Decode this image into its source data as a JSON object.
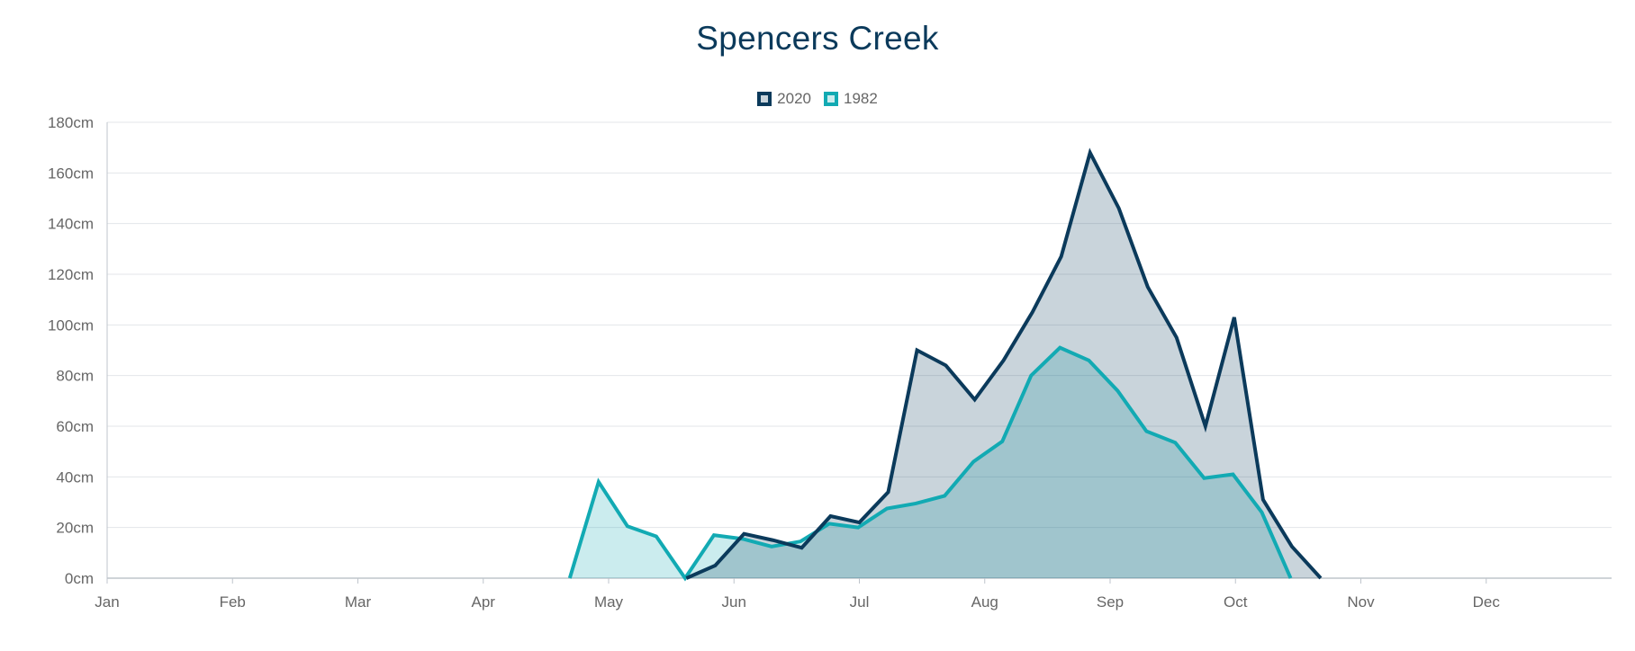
{
  "chart_data": {
    "type": "area",
    "title": "Spencers Creek",
    "xlabel": "",
    "ylabel": "",
    "x_unit": "month",
    "xlim": [
      0,
      12
    ],
    "ylim": [
      0,
      180
    ],
    "y_ticks": [
      0,
      20,
      40,
      60,
      80,
      100,
      120,
      140,
      160,
      180
    ],
    "y_tick_labels": [
      "0cm",
      "20cm",
      "40cm",
      "60cm",
      "80cm",
      "100cm",
      "120cm",
      "140cm",
      "160cm",
      "180cm"
    ],
    "x_tick_labels": [
      "Jan",
      "Feb",
      "Mar",
      "Apr",
      "May",
      "Jun",
      "Jul",
      "Aug",
      "Sep",
      "Oct",
      "Nov",
      "Dec"
    ],
    "grid": true,
    "legend_position": "top-center",
    "series": [
      {
        "name": "2020",
        "color": "#0b3a5b",
        "fill": "rgba(11,58,91,0.22)",
        "points": [
          [
            4.62,
            0
          ],
          [
            4.85,
            5
          ],
          [
            5.08,
            17.5
          ],
          [
            5.31,
            15
          ],
          [
            5.54,
            12
          ],
          [
            5.77,
            24.5
          ],
          [
            6.0,
            22
          ],
          [
            6.23,
            34
          ],
          [
            6.46,
            90
          ],
          [
            6.69,
            84
          ],
          [
            6.92,
            70.5
          ],
          [
            7.15,
            86
          ],
          [
            7.38,
            105
          ],
          [
            7.61,
            127
          ],
          [
            7.84,
            168
          ],
          [
            8.07,
            146
          ],
          [
            8.3,
            115
          ],
          [
            8.53,
            95
          ],
          [
            8.76,
            60
          ],
          [
            8.99,
            103
          ],
          [
            9.22,
            31
          ],
          [
            9.45,
            12.5
          ],
          [
            9.68,
            0
          ]
        ]
      },
      {
        "name": "1982",
        "color": "#12aab3",
        "fill": "rgba(18,170,179,0.22)",
        "points": [
          [
            3.69,
            0
          ],
          [
            3.92,
            38
          ],
          [
            4.15,
            20.5
          ],
          [
            4.38,
            16.5
          ],
          [
            4.61,
            0
          ],
          [
            4.84,
            17
          ],
          [
            5.07,
            15.5
          ],
          [
            5.3,
            12.5
          ],
          [
            5.53,
            14.5
          ],
          [
            5.76,
            21.5
          ],
          [
            5.99,
            20
          ],
          [
            6.22,
            27.5
          ],
          [
            6.45,
            29.5
          ],
          [
            6.68,
            32.5
          ],
          [
            6.91,
            46
          ],
          [
            7.14,
            54
          ],
          [
            7.37,
            80
          ],
          [
            7.6,
            91
          ],
          [
            7.83,
            86
          ],
          [
            8.06,
            74
          ],
          [
            8.29,
            58
          ],
          [
            8.52,
            53.5
          ],
          [
            8.75,
            39.5
          ],
          [
            8.98,
            41
          ],
          [
            9.21,
            26
          ],
          [
            9.44,
            0
          ]
        ]
      }
    ]
  }
}
